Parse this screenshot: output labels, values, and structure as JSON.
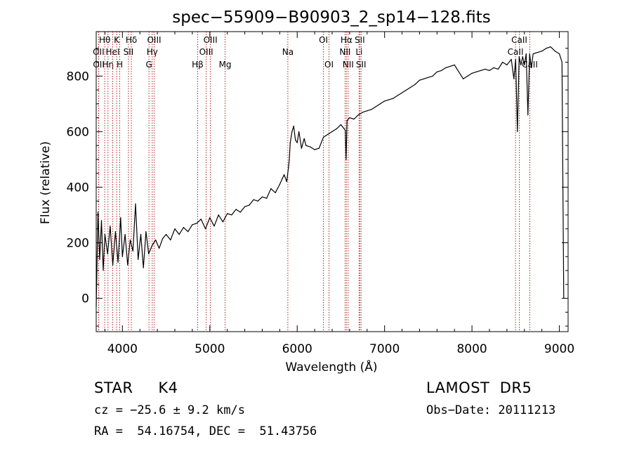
{
  "chart_data": {
    "type": "line",
    "title": "spec−55909−B90903_2_sp14−128.fits",
    "xlabel": "Wavelength (Å)",
    "ylabel": "Flux (relative)",
    "xlim": [
      3700,
      9100
    ],
    "ylim": [
      -120,
      960
    ],
    "xticks": [
      4000,
      5000,
      6000,
      7000,
      8000,
      9000
    ],
    "yticks": [
      0,
      200,
      400,
      600,
      800
    ],
    "series": [
      {
        "color": "#000000",
        "x": [
          3700,
          3720,
          3740,
          3760,
          3780,
          3800,
          3830,
          3860,
          3890,
          3920,
          3950,
          3980,
          4000,
          4030,
          4060,
          4090,
          4120,
          4150,
          4180,
          4210,
          4240,
          4270,
          4300,
          4340,
          4380,
          4420,
          4460,
          4500,
          4550,
          4600,
          4650,
          4700,
          4750,
          4800,
          4850,
          4900,
          4950,
          5000,
          5050,
          5100,
          5150,
          5200,
          5250,
          5300,
          5350,
          5400,
          5450,
          5500,
          5550,
          5600,
          5650,
          5700,
          5750,
          5800,
          5850,
          5880,
          5900,
          5910,
          5920,
          5940,
          5960,
          5980,
          6000,
          6020,
          6050,
          6080,
          6100,
          6150,
          6200,
          6250,
          6300,
          6350,
          6400,
          6450,
          6500,
          6550,
          6560,
          6570,
          6600,
          6650,
          6700,
          6750,
          6800,
          6850,
          6900,
          6950,
          7000,
          7050,
          7100,
          7150,
          7200,
          7250,
          7300,
          7350,
          7400,
          7450,
          7500,
          7550,
          7600,
          7650,
          7700,
          7750,
          7800,
          7850,
          7900,
          7950,
          8000,
          8050,
          8100,
          8150,
          8200,
          8250,
          8300,
          8350,
          8400,
          8450,
          8480,
          8500,
          8520,
          8540,
          8560,
          8580,
          8600,
          8620,
          8640,
          8660,
          8680,
          8700,
          8750,
          8800,
          8850,
          8900,
          8950,
          9000,
          9030,
          9050
        ],
        "y": [
          -30,
          310,
          140,
          280,
          100,
          230,
          160,
          260,
          120,
          240,
          130,
          290,
          150,
          230,
          120,
          210,
          170,
          340,
          140,
          230,
          110,
          240,
          160,
          190,
          210,
          180,
          215,
          230,
          210,
          250,
          230,
          255,
          240,
          265,
          270,
          285,
          250,
          290,
          260,
          300,
          275,
          305,
          300,
          320,
          310,
          330,
          335,
          355,
          350,
          365,
          360,
          395,
          380,
          410,
          445,
          420,
          470,
          500,
          560,
          600,
          620,
          570,
          560,
          600,
          540,
          575,
          550,
          545,
          535,
          540,
          580,
          590,
          600,
          610,
          625,
          605,
          500,
          640,
          650,
          645,
          660,
          670,
          675,
          680,
          690,
          700,
          710,
          715,
          720,
          730,
          740,
          750,
          760,
          770,
          785,
          790,
          795,
          800,
          815,
          820,
          830,
          835,
          840,
          815,
          790,
          800,
          810,
          815,
          820,
          825,
          820,
          830,
          825,
          850,
          840,
          860,
          790,
          860,
          600,
          870,
          840,
          870,
          840,
          880,
          660,
          880,
          830,
          880,
          885,
          890,
          900,
          905,
          890,
          880,
          850,
          0
        ]
      }
    ],
    "line_markers": [
      {
        "label": "Hθ",
        "wavelength": 3798,
        "row": 0
      },
      {
        "label": "OII",
        "wavelength": 3727,
        "row": 1
      },
      {
        "label": "OII",
        "wavelength": 3729,
        "row": 2
      },
      {
        "label": "Hη",
        "wavelength": 3835,
        "row": 2
      },
      {
        "label": "HeI",
        "wavelength": 3889,
        "row": 1
      },
      {
        "label": "K",
        "wavelength": 3934,
        "row": 0
      },
      {
        "label": "H",
        "wavelength": 3969,
        "row": 2
      },
      {
        "label": "SII",
        "wavelength": 4069,
        "row": 1
      },
      {
        "label": "Hδ",
        "wavelength": 4102,
        "row": 0
      },
      {
        "label": "G",
        "wavelength": 4304,
        "row": 2
      },
      {
        "label": "Hγ",
        "wavelength": 4341,
        "row": 1
      },
      {
        "label": "OIII",
        "wavelength": 4363,
        "row": 0
      },
      {
        "label": "Hβ",
        "wavelength": 4861,
        "row": 2
      },
      {
        "label": "OIII",
        "wavelength": 4959,
        "row": 1
      },
      {
        "label": "OIII",
        "wavelength": 5007,
        "row": 0
      },
      {
        "label": "Mg",
        "wavelength": 5175,
        "row": 2
      },
      {
        "label": "Na",
        "wavelength": 5893,
        "row": 1
      },
      {
        "label": "OI",
        "wavelength": 6300,
        "row": 0
      },
      {
        "label": "OI",
        "wavelength": 6364,
        "row": 2
      },
      {
        "label": "NII",
        "wavelength": 6548,
        "row": 1
      },
      {
        "label": "NII",
        "wavelength": 6583,
        "row": 2
      },
      {
        "label": "Hα",
        "wavelength": 6563,
        "row": 0
      },
      {
        "label": "Li",
        "wavelength": 6708,
        "row": 1
      },
      {
        "label": "SII",
        "wavelength": 6716,
        "row": 0
      },
      {
        "label": "SII",
        "wavelength": 6731,
        "row": 2
      },
      {
        "label": "CaII",
        "wavelength": 8498,
        "row": 1
      },
      {
        "label": "CaII",
        "wavelength": 8542,
        "row": 0
      },
      {
        "label": "CaII",
        "wavelength": 8662,
        "row": 2
      }
    ],
    "marker_color": "#b22222"
  },
  "info": {
    "object": "STAR     K4",
    "survey": "LAMOST  DR5",
    "cz": "cz = −25.6 ± 9.2 km/s",
    "obs_date": "Obs−Date: 20111213",
    "radec": "RA =  54.16754, DEC =  51.43756"
  }
}
